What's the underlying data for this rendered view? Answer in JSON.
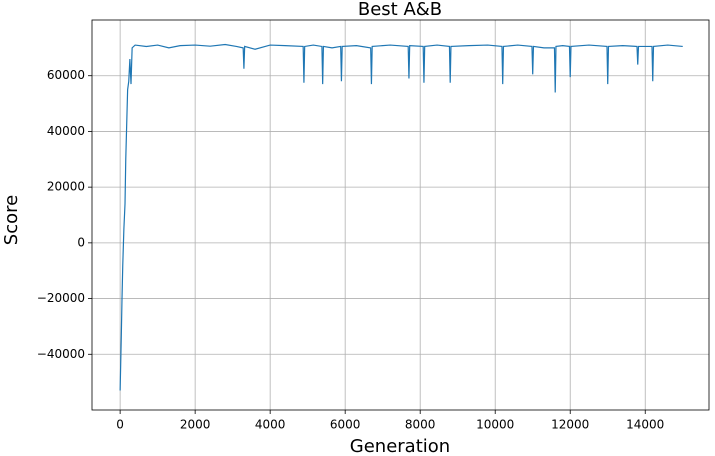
{
  "chart_data": {
    "type": "line",
    "title": "Best A&B",
    "x_label": "Generation",
    "y_label": "Score",
    "x": [
      0,
      30,
      50,
      70,
      100,
      130,
      150,
      170,
      200,
      230,
      260,
      290,
      320,
      400,
      700,
      1000,
      1300,
      1600,
      2000,
      2400,
      2800,
      3100,
      3280,
      3300,
      3320,
      3600,
      4000,
      4400,
      4880,
      4900,
      4920,
      5150,
      5380,
      5400,
      5420,
      5650,
      5880,
      5900,
      5920,
      6300,
      6680,
      6700,
      6720,
      7200,
      7680,
      7700,
      7720,
      8080,
      8100,
      8120,
      8450,
      8780,
      8800,
      8820,
      9300,
      9800,
      10180,
      10200,
      10220,
      10600,
      10980,
      11000,
      11020,
      11300,
      11580,
      11600,
      11620,
      11800,
      11980,
      12000,
      12020,
      12500,
      12980,
      13000,
      13020,
      13400,
      13780,
      13800,
      13820,
      14180,
      14200,
      14220,
      14600,
      15000
    ],
    "series": [
      {
        "name": "Score",
        "color": "#1f77b4",
        "values": [
          -53000,
          -34000,
          -20000,
          -8000,
          5000,
          14000,
          30000,
          40000,
          55000,
          58000,
          66000,
          57000,
          70000,
          71000,
          70500,
          71000,
          70000,
          70800,
          71000,
          70600,
          71200,
          70500,
          70000,
          62500,
          70500,
          69500,
          71000,
          70800,
          70500,
          57500,
          70500,
          71000,
          70500,
          57000,
          70500,
          70000,
          70500,
          58000,
          70500,
          70800,
          70000,
          57000,
          70500,
          71000,
          70500,
          59000,
          70800,
          70500,
          57500,
          70500,
          71000,
          70500,
          57500,
          70500,
          70800,
          71000,
          70500,
          57000,
          70500,
          71000,
          70500,
          60500,
          70500,
          70000,
          70000,
          54000,
          70500,
          70800,
          70500,
          59500,
          70500,
          71000,
          70500,
          57000,
          70500,
          70800,
          70500,
          64000,
          70500,
          70500,
          58000,
          70500,
          71000,
          70500
        ]
      }
    ],
    "xlim": [
      -750,
      15700
    ],
    "ylim": [
      -60000,
      80000
    ],
    "xticks": [
      0,
      2000,
      4000,
      6000,
      8000,
      10000,
      12000,
      14000
    ],
    "yticks": [
      {
        "value": -40000,
        "label": "−40000"
      },
      {
        "value": -20000,
        "label": "−20000"
      },
      0,
      20000,
      40000,
      60000
    ],
    "grid": true
  }
}
